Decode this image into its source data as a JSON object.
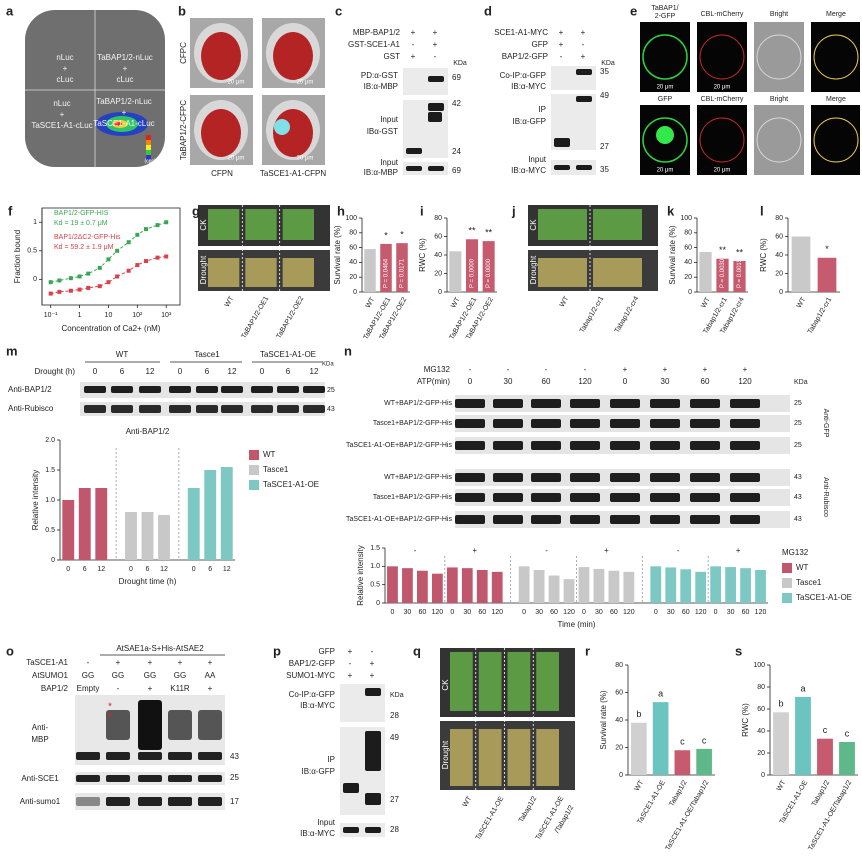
{
  "panels": {
    "a": {
      "letter": "a",
      "texts": [
        "nLuc",
        "+",
        "cLuc",
        "TaBAP1/2-nLuc",
        "+",
        "cLuc",
        "nLuc",
        "+",
        "TaSCE1-A1-cLuc",
        "TaBAP1/2-nLuc",
        "+",
        "TaSCE1-A1-cLuc",
        "(cps)"
      ]
    },
    "b": {
      "letter": "b",
      "texts": [
        "CFPC",
        "TaBAP1/2-CFPC",
        "CFPN",
        "TaSCE1-A1-CFPN",
        "20 μm",
        "20 μm",
        "20 μm",
        "20 μm"
      ]
    },
    "c": {
      "letter": "c",
      "texts": [
        "MBP-BAP1/2",
        "GST-SCE1-A1",
        "GST",
        "+",
        "+",
        "-",
        "+",
        "+",
        "-",
        "KDa",
        "PD:α-GST",
        "IB:α-MBP",
        "Input",
        "IBα-GST",
        "Input",
        "IB:α-MBP",
        "69",
        "42",
        "24",
        "69"
      ]
    },
    "d": {
      "letter": "d",
      "texts": [
        "SCE1-A1-MYC",
        "GFP",
        "BAP1/2-GFP",
        "+",
        "+",
        "+",
        "-",
        "-",
        "+",
        "KDa",
        "Co-IP:α-GFP",
        "IB:α-MYC",
        "IP",
        "IB:α-GFP",
        "Input",
        "IB:α-MYC",
        "35",
        "49",
        "27",
        "35"
      ]
    },
    "e": {
      "letter": "e",
      "texts": [
        "TaBAP1/",
        "2-GFP",
        "CBL-mCherry",
        "Bright",
        "Merge",
        "GFP",
        "CBL-mCherry",
        "Bright",
        "Merge",
        "20 μm",
        "20 μm",
        "20 μm",
        "20 μm"
      ]
    },
    "g": {
      "letter": "g",
      "texts": [
        "CK",
        "Drought",
        "WT",
        "TaBAP1/2-OE1",
        "TaBAP1/2-OE2"
      ]
    },
    "j": {
      "letter": "j",
      "texts": [
        "CK",
        "Drought",
        "WT",
        "Tabap1/2-cr1",
        "Tabap1/2-cr4"
      ]
    },
    "m": {
      "letter": "m",
      "texts": [
        "WT",
        "Tasce1",
        "TaSCE1-A1-OE",
        "Drought (h)",
        "0",
        "6",
        "12",
        "0",
        "6",
        "12",
        "0",
        "6",
        "12",
        "KDa",
        "Anti-BAP1/2",
        "Anti-Rubisco",
        "25",
        "43"
      ]
    },
    "n": {
      "letter": "n",
      "texts": [
        "MG132",
        "ATP(min)",
        "-",
        "-",
        "-",
        "-",
        "+",
        "+",
        "+",
        "+",
        "0",
        "30",
        "60",
        "120",
        "0",
        "30",
        "60",
        "120",
        "KDa",
        "WT+BAP1/2-GFP-His",
        "Tasce1+BAP1/2-GFP-His",
        "TaSCE1-A1-OE+BAP1/2-GFP-His",
        "WT+BAP1/2-GFP-His",
        "Tasce1+BAP1/2-GFP-His",
        "TaSCE1-A1-OE+BAP1/2-GFP-His",
        "Anti-GFP",
        "Anti-Rubisco",
        "25",
        "25",
        "25",
        "43",
        "43",
        "43"
      ]
    },
    "o": {
      "letter": "o",
      "texts": [
        "AtSAE1a-S+His-AtSAE2",
        "TaSCE1-A1",
        "AtSUMO1",
        "BAP1/2",
        "-",
        "+",
        "+",
        "+",
        "+",
        "GG",
        "GG",
        "GG",
        "GG",
        "AA",
        "Empty",
        "-",
        "+",
        "K11R",
        "+",
        "Anti-",
        "MBP",
        "*",
        "*",
        "Anti-SCE1",
        "Anti-sumo1",
        "43",
        "25",
        "17"
      ]
    },
    "p": {
      "letter": "p",
      "texts": [
        "GFP",
        "BAP1/2-GFP",
        "SUMO1-MYC",
        "+",
        "-",
        "-",
        "+",
        "+",
        "+",
        "Co-IP:α-GFP",
        "IB:α-MYC",
        "KDa",
        "28",
        "IP",
        "IB:α-GFP",
        "49",
        "27",
        "Input",
        "IB:α-MYC",
        "28"
      ]
    },
    "q": {
      "letter": "q",
      "texts": [
        "CK",
        "Drought",
        "WT",
        "TaSCE1-A1-OE",
        "Tabap1/2",
        "TaSCE1-A1-OE",
        "/Tabap1/2"
      ]
    }
  },
  "chart_data": [
    {
      "type": "line",
      "letter": "f",
      "y_label": "Fraction bound",
      "x_label": "Concentration of Ca2+ (nM)",
      "xscale": "log",
      "x": [
        0.1,
        0.2,
        0.5,
        1,
        2,
        5,
        10,
        20,
        50,
        100,
        200,
        500,
        1000
      ],
      "series": [
        {
          "name": "BAP1/2-GFP-HIS",
          "color": "#3aa655",
          "values": [
            -0.05,
            -0.02,
            0.02,
            0.05,
            0.1,
            0.2,
            0.35,
            0.5,
            0.65,
            0.78,
            0.88,
            0.95,
            1.0
          ]
        },
        {
          "name": "BAP1/2ΔC2-GFP-His",
          "color": "#d9404a",
          "values": [
            -0.25,
            -0.22,
            -0.2,
            -0.18,
            -0.15,
            -0.12,
            -0.05,
            0.05,
            0.15,
            0.25,
            0.32,
            0.38,
            0.4
          ]
        }
      ],
      "annotations": [
        "Kd = 19 ± 0.7 μM",
        "Kd = 59.2 ± 1.9 μM"
      ],
      "xlim": [
        0.05,
        3000
      ],
      "xticks": [
        {
          "value": 0.1,
          "label": "10⁻¹"
        },
        1,
        10,
        {
          "value": 100,
          "label": "10²"
        },
        {
          "value": 1000,
          "label": "10³"
        }
      ],
      "ylim": [
        -0.45,
        1.25
      ],
      "yticks": [
        0,
        0.5,
        1
      ]
    },
    {
      "type": "bar",
      "letter": "h",
      "y_label": "Survival rate (%)",
      "categories": [
        "WT",
        "TaBAP1/2-OE1",
        "TaBAP1/2-OE2"
      ],
      "values": [
        58,
        65,
        66
      ],
      "colors": [
        "#c9c9c9",
        "#c65a6e",
        "#c65a6e"
      ],
      "annotations": [
        null,
        "*",
        "*"
      ],
      "p_values": [
        null,
        "P = 0.0464",
        "P = 0.0171"
      ],
      "ylim": [
        0,
        100
      ],
      "yticks": [
        0,
        20,
        40,
        60,
        80,
        100
      ]
    },
    {
      "type": "bar",
      "letter": "i",
      "y_label": "RWC (%)",
      "categories": [
        "WT",
        "TaBAP1/2-OE1",
        "TaBAP1/2-OE2"
      ],
      "values": [
        44,
        57,
        55
      ],
      "colors": [
        "#c9c9c9",
        "#c65a6e",
        "#c65a6e"
      ],
      "annotations": [
        null,
        "**",
        "**"
      ],
      "p_values": [
        null,
        "P = 0.0000",
        "P = 0.0000"
      ],
      "ylim": [
        0,
        80
      ],
      "yticks": [
        0,
        20,
        40,
        60,
        80
      ]
    },
    {
      "type": "bar",
      "letter": "k",
      "y_label": "Survival rate (%)",
      "categories": [
        "WT",
        "Tabap1/2-cr1",
        "Tabap1/2-cr4"
      ],
      "values": [
        54,
        45,
        42
      ],
      "colors": [
        "#c9c9c9",
        "#c65a6e",
        "#c65a6e"
      ],
      "annotations": [
        null,
        "**",
        "**"
      ],
      "p_values": [
        null,
        "P = 0.0030",
        "P = 0.0015"
      ],
      "ylim": [
        0,
        100
      ],
      "yticks": [
        0,
        20,
        40,
        60,
        80,
        100
      ]
    },
    {
      "type": "bar",
      "letter": "l",
      "y_label": "RWC (%)",
      "categories": [
        "WT",
        "Tabap1/2-cr1"
      ],
      "values": [
        60,
        37
      ],
      "colors": [
        "#c9c9c9",
        "#c65a6e"
      ],
      "annotations": [
        null,
        "*"
      ],
      "ylim": [
        0,
        80
      ],
      "yticks": [
        0,
        20,
        40,
        60,
        80
      ]
    },
    {
      "type": "bar",
      "title": "Anti-BAP1/2",
      "y_label": "Relative intensity",
      "x_label": "Drought time (h)",
      "categories": [
        "0",
        "6",
        "12"
      ],
      "series": [
        {
          "name": "WT",
          "color": "#c0576c",
          "values": [
            1.0,
            1.2,
            1.2
          ]
        },
        {
          "name": "Tasce1",
          "color": "#c8c8c8",
          "values": [
            0.8,
            0.8,
            0.75
          ]
        },
        {
          "name": "TaSCE1-A1-OE",
          "color": "#7ec8c4",
          "values": [
            1.2,
            1.5,
            1.55
          ]
        }
      ],
      "ylim": [
        0,
        2
      ],
      "yticks": [
        0,
        0.5,
        {
          "value": 1,
          "label": "1.0"
        },
        1.5,
        {
          "value": 2,
          "label": "2.0"
        }
      ]
    },
    {
      "type": "bar",
      "y_label": "Relative intensity",
      "x_label": "Time (min)",
      "categories": [
        "0",
        "30",
        "60",
        "120",
        "0",
        "30",
        "60",
        "120"
      ],
      "group_labels": [
        "-",
        "+"
      ],
      "legend_title": "MG132",
      "series": [
        {
          "name": "WT",
          "color": "#c0576c",
          "values": [
            1.0,
            0.95,
            0.88,
            0.8,
            0.97,
            0.95,
            0.9,
            0.85
          ]
        },
        {
          "name": "Tasce1",
          "color": "#c8c8c8",
          "values": [
            1.0,
            0.9,
            0.75,
            0.65,
            0.98,
            0.93,
            0.88,
            0.85
          ]
        },
        {
          "name": "TaSCE1-A1-OE",
          "color": "#7ec8c4",
          "values": [
            1.0,
            0.97,
            0.92,
            0.85,
            1.0,
            0.98,
            0.95,
            0.9
          ]
        }
      ],
      "ylim": [
        0,
        1.5
      ],
      "yticks": [
        0,
        0.5,
        {
          "value": 1,
          "label": "1.0"
        },
        1.5
      ]
    },
    {
      "type": "bar",
      "letter": "r",
      "y_label": "Survival rate (%)",
      "categories": [
        "WT",
        "TaSCE1-A1-OE",
        "Tabap1/2",
        "TaSCE1-A1-OE/Tabap1/2"
      ],
      "values": [
        38,
        53,
        18,
        19
      ],
      "colors": [
        "#d0d0d0",
        "#6cc4c0",
        "#c65a6e",
        "#5fb88a"
      ],
      "annotations": [
        "b",
        "a",
        "c",
        "c"
      ],
      "ylim": [
        0,
        80
      ],
      "yticks": [
        0,
        20,
        40,
        60,
        80
      ]
    },
    {
      "type": "bar",
      "letter": "s",
      "y_label": "RWC (%)",
      "categories": [
        "WT",
        "TaSCE1-A1-OE",
        "Tabap1/2",
        "TaSCE1-A1-OE/Tabap1/2"
      ],
      "values": [
        57,
        71,
        33,
        30
      ],
      "colors": [
        "#d0d0d0",
        "#6cc4c0",
        "#c65a6e",
        "#5fb88a"
      ],
      "annotations": [
        "b",
        "a",
        "c",
        "c"
      ],
      "ylim": [
        0,
        100
      ],
      "yticks": [
        0,
        20,
        40,
        60,
        80,
        100
      ]
    }
  ]
}
